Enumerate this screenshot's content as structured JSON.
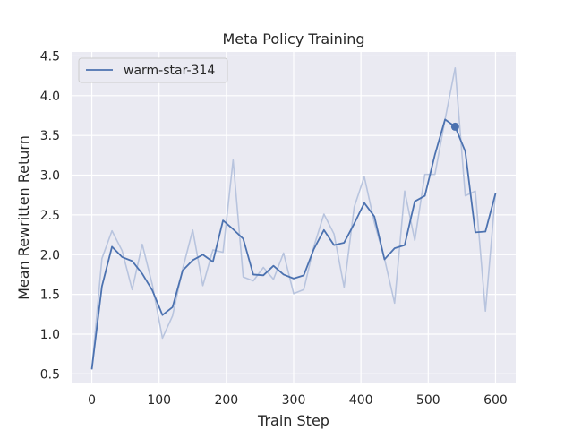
{
  "chart_data": {
    "type": "line",
    "title": "Meta Policy Training",
    "xlabel": "Train Step",
    "ylabel": "Mean Rewritten Return",
    "xlim": [
      -30,
      630
    ],
    "ylim": [
      0.38,
      4.55
    ],
    "xticks": [
      0,
      100,
      200,
      300,
      400,
      500,
      600
    ],
    "yticks": [
      0.5,
      1.0,
      1.5,
      2.0,
      2.5,
      3.0,
      3.5,
      4.0,
      4.5
    ],
    "ytick_labels": [
      "0.5",
      "1.0",
      "1.5",
      "2.0",
      "2.5",
      "3.0",
      "3.5",
      "4.0",
      "4.5"
    ],
    "grid": true,
    "legend_position": "top-left",
    "series": [
      {
        "name": "warm-star-314",
        "color": "#4c72b0",
        "raw_color": "#b8c4de",
        "marker": {
          "x": 540,
          "y": 3.61
        },
        "x": [
          0,
          15,
          30,
          45,
          60,
          75,
          90,
          105,
          120,
          135,
          150,
          165,
          180,
          195,
          210,
          225,
          240,
          255,
          270,
          285,
          300,
          315,
          330,
          345,
          360,
          375,
          390,
          405,
          420,
          435,
          450,
          465,
          480,
          495,
          510,
          525,
          540,
          555,
          570,
          585,
          600
        ],
        "raw": [
          0.55,
          1.95,
          2.3,
          2.05,
          1.56,
          2.13,
          1.62,
          0.95,
          1.23,
          1.82,
          2.31,
          1.61,
          2.06,
          2.03,
          3.19,
          1.72,
          1.67,
          1.84,
          1.69,
          2.02,
          1.51,
          1.56,
          2.1,
          2.51,
          2.26,
          1.59,
          2.6,
          2.98,
          2.4,
          1.95,
          1.39,
          2.8,
          2.18,
          3.01,
          3.01,
          3.7,
          4.35,
          2.74,
          2.8,
          1.29,
          2.78
        ],
        "smoothed": [
          0.56,
          1.6,
          2.1,
          1.97,
          1.92,
          1.76,
          1.55,
          1.24,
          1.34,
          1.8,
          1.93,
          2.0,
          1.91,
          2.43,
          2.32,
          2.2,
          1.75,
          1.74,
          1.86,
          1.75,
          1.7,
          1.74,
          2.07,
          2.31,
          2.12,
          2.15,
          2.39,
          2.65,
          2.48,
          1.94,
          2.08,
          2.12,
          2.67,
          2.74,
          3.26,
          3.7,
          3.61,
          3.3,
          2.28,
          2.29,
          2.77
        ]
      }
    ]
  }
}
